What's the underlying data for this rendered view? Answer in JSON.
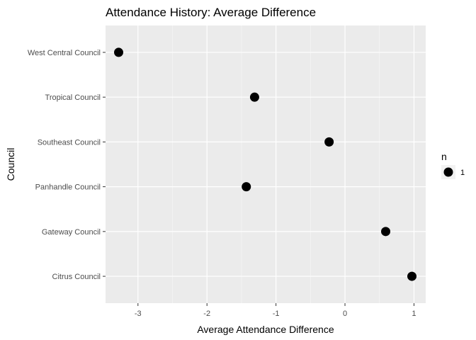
{
  "chart_data": {
    "type": "scatter",
    "title": "Attendance History: Average Difference",
    "xlabel": "Average Attendance Difference",
    "ylabel": "Council",
    "xlim": [
      -3.47,
      1.17
    ],
    "x_ticks": [
      -3,
      -2,
      -1,
      0,
      1
    ],
    "x_tick_labels": [
      "-3",
      "-2",
      "-1",
      "0",
      "1"
    ],
    "categories": [
      "Citrus Council",
      "Gateway Council",
      "Panhandle Council",
      "Southeast Council",
      "Tropical Council",
      "West Central Council"
    ],
    "points": [
      {
        "category": "West Central Council",
        "x": -3.28,
        "n": 1
      },
      {
        "category": "Tropical Council",
        "x": -1.31,
        "n": 1
      },
      {
        "category": "Southeast Council",
        "x": -0.23,
        "n": 1
      },
      {
        "category": "Panhandle Council",
        "x": -1.43,
        "n": 1
      },
      {
        "category": "Gateway Council",
        "x": 0.59,
        "n": 1
      },
      {
        "category": "Citrus Council",
        "x": 0.97,
        "n": 1
      }
    ],
    "grid": true,
    "legend": {
      "title": "n",
      "position": "right",
      "entries": [
        {
          "label": "1"
        }
      ]
    },
    "colors": {
      "panel": "#ebebeb",
      "grid_major": "#ffffff",
      "point": "#000000"
    }
  }
}
